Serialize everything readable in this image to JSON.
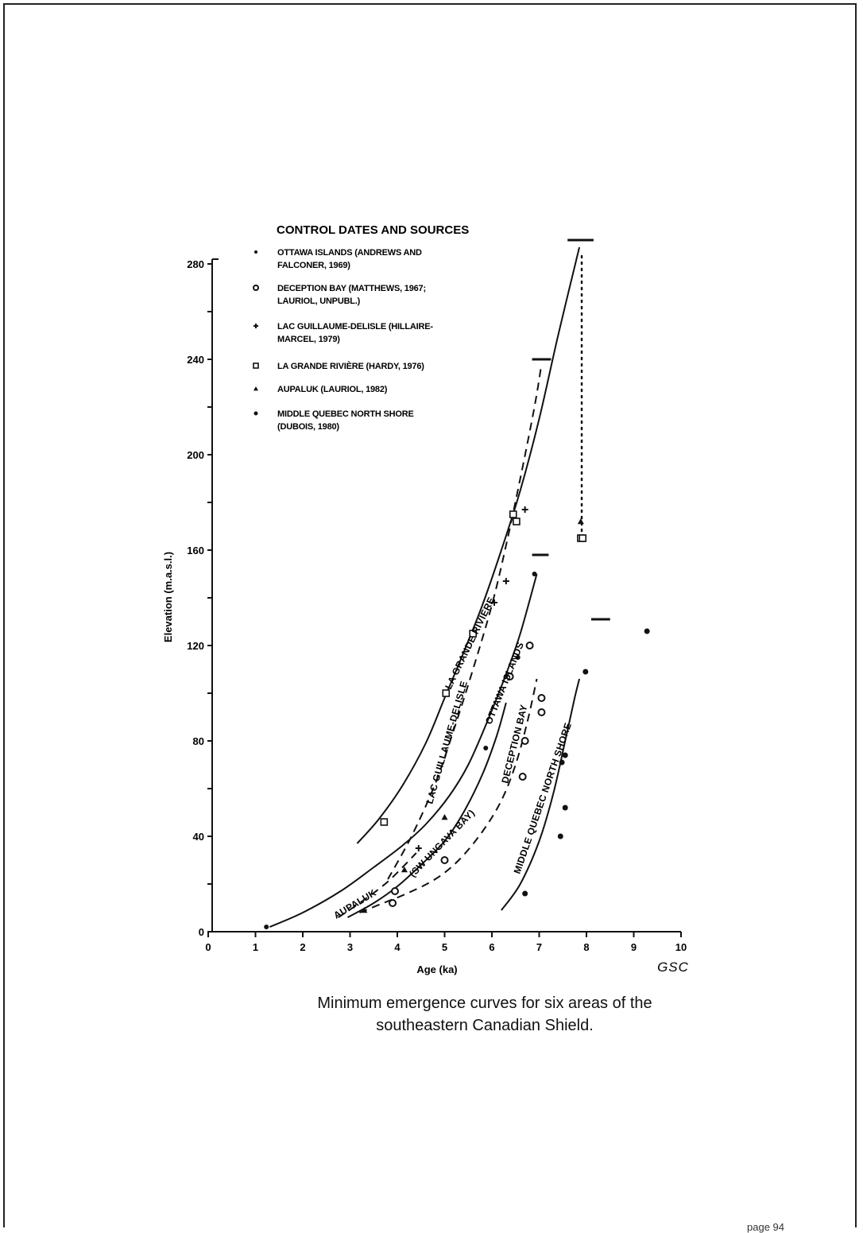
{
  "legend": {
    "title": "CONTROL DATES AND SOURCES",
    "entries": [
      {
        "marker": "dot",
        "line1": "OTTAWA ISLANDS (ANDREWS AND",
        "line2": "FALCONER, 1969)"
      },
      {
        "marker": "dot-large",
        "line1": "DECEPTION BAY (MATTHEWS, 1967;",
        "line2": "LAURIOL, UNPUBL.)"
      },
      {
        "marker": "cross",
        "line1": "LAC GUILLAUME-DELISLE (HILLAIRE-",
        "line2": "MARCEL, 1979)"
      },
      {
        "marker": "square",
        "line1": "LA GRANDE RIVIÈRE (HARDY, 1976)",
        "line2": ""
      },
      {
        "marker": "triangle",
        "line1": "AUPALUK (LAURIOL, 1982)",
        "line2": ""
      },
      {
        "marker": "diamond",
        "line1": "MIDDLE QUEBEC NORTH SHORE",
        "line2": "(DUBOIS, 1980)"
      }
    ]
  },
  "axes": {
    "y_title": "Elevation (m.a.s.l.)",
    "x_title": "Age (ka)",
    "x_ticks": [
      "0",
      "1",
      "2",
      "3",
      "4",
      "5",
      "6",
      "7",
      "8",
      "9",
      "10"
    ],
    "y_ticks": [
      "0",
      "40",
      "80",
      "120",
      "160",
      "200",
      "240",
      "280"
    ]
  },
  "source_mark": "GSC",
  "caption": {
    "line1": "Minimum emergence curves for six areas of the",
    "line2": "southeastern Canadian Shield."
  },
  "page_number": "page 94",
  "chart_data": {
    "type": "line",
    "title": "",
    "xlabel": "Age (ka)",
    "ylabel": "Elevation (m.a.s.l.)",
    "xlim": [
      0,
      10
    ],
    "ylim": [
      0,
      280
    ],
    "x_ticks": [
      0,
      1,
      2,
      3,
      4,
      5,
      6,
      7,
      8,
      9,
      10
    ],
    "y_ticks": [
      0,
      40,
      80,
      120,
      160,
      200,
      240,
      280
    ],
    "series": [
      {
        "name": "LA GRANDE RIVIÈRE",
        "style": "solid",
        "x": [
          3.15,
          3.6,
          4.1,
          4.6,
          5.0,
          5.4,
          5.8,
          6.2,
          6.6,
          7.0,
          7.4,
          7.85
        ],
        "y": [
          37,
          47,
          61,
          79,
          98,
          117,
          137,
          160,
          185,
          215,
          250,
          287
        ]
      },
      {
        "name": "LAC GUILLAUME-DELISLE",
        "style": "dashed",
        "x": [
          3.8,
          4.3,
          4.8,
          5.2,
          5.6,
          6.0,
          6.3,
          6.6,
          6.9,
          7.05
        ],
        "y": [
          22,
          40,
          62,
          85,
          110,
          137,
          162,
          190,
          220,
          238
        ]
      },
      {
        "name": "OTTAWA ISLANDS",
        "style": "solid",
        "x": [
          1.3,
          2.0,
          2.8,
          3.5,
          4.1,
          4.6,
          5.1,
          5.5,
          5.9,
          6.3,
          6.6,
          6.95
        ],
        "y": [
          2,
          8,
          17,
          27,
          36,
          45,
          57,
          70,
          88,
          108,
          125,
          150
        ]
      },
      {
        "name": "AUPALUK (SW UNGAVA BAY)",
        "style": "solid",
        "x": [
          2.95,
          3.5,
          4.0,
          4.5,
          5.0,
          5.4,
          5.8,
          6.1,
          6.3
        ],
        "y": [
          6,
          12,
          19,
          28,
          38,
          50,
          66,
          82,
          96
        ]
      },
      {
        "name": "DECEPTION BAY",
        "style": "dashed",
        "x": [
          3.2,
          3.7,
          4.2,
          4.8,
          5.3,
          5.8,
          6.2,
          6.5,
          6.75,
          6.95
        ],
        "y": [
          8,
          12,
          16,
          22,
          30,
          42,
          55,
          70,
          88,
          106
        ]
      },
      {
        "name": "MIDDLE QUEBEC NORTH SHORE",
        "style": "solid",
        "x": [
          6.2,
          6.6,
          7.0,
          7.3,
          7.55,
          7.75,
          7.85
        ],
        "y": [
          9,
          20,
          38,
          58,
          80,
          98,
          106
        ]
      },
      {
        "name": "",
        "style": "dashed",
        "x": [
          2.75,
          3.2,
          3.8,
          4.4
        ],
        "y": [
          6,
          12,
          21,
          33
        ]
      }
    ],
    "range_bars": [
      {
        "x": [
          7.6,
          8.15
        ],
        "y": 290
      },
      {
        "x": [
          6.85,
          7.25
        ],
        "y": 240
      },
      {
        "x": [
          6.85,
          7.2
        ],
        "y": 158
      },
      {
        "x": [
          8.1,
          8.5
        ],
        "y": 131
      }
    ],
    "dotted_connector": {
      "x": 7.9,
      "y": [
        168,
        285
      ]
    },
    "points": [
      {
        "x": 3.72,
        "y": 46,
        "marker": "square"
      },
      {
        "x": 5.03,
        "y": 100,
        "marker": "square"
      },
      {
        "x": 5.6,
        "y": 125,
        "marker": "square"
      },
      {
        "x": 6.45,
        "y": 175,
        "marker": "square"
      },
      {
        "x": 6.52,
        "y": 172,
        "marker": "square"
      },
      {
        "x": 7.88,
        "y": 165,
        "marker": "square"
      },
      {
        "x": 7.92,
        "y": 165,
        "marker": "square"
      },
      {
        "x": 6.7,
        "y": 177,
        "marker": "cross"
      },
      {
        "x": 6.3,
        "y": 147,
        "marker": "cross"
      },
      {
        "x": 6.05,
        "y": 138,
        "marker": "cross"
      },
      {
        "x": 4.45,
        "y": 35,
        "marker": "cross"
      },
      {
        "x": 7.88,
        "y": 172,
        "marker": "triangle"
      },
      {
        "x": 5.0,
        "y": 48,
        "marker": "triangle"
      },
      {
        "x": 4.15,
        "y": 26,
        "marker": "triangle"
      },
      {
        "x": 3.3,
        "y": 9,
        "marker": "triangle"
      },
      {
        "x": 1.23,
        "y": 2,
        "marker": "dot"
      },
      {
        "x": 5.87,
        "y": 77,
        "marker": "dot"
      },
      {
        "x": 6.55,
        "y": 115,
        "marker": "dot"
      },
      {
        "x": 6.9,
        "y": 150,
        "marker": "dot"
      },
      {
        "x": 3.9,
        "y": 12,
        "marker": "dot-large"
      },
      {
        "x": 3.95,
        "y": 17,
        "marker": "dot-large"
      },
      {
        "x": 5.0,
        "y": 30,
        "marker": "dot-large"
      },
      {
        "x": 6.65,
        "y": 65,
        "marker": "dot-large"
      },
      {
        "x": 6.7,
        "y": 80,
        "marker": "dot-large"
      },
      {
        "x": 6.38,
        "y": 107,
        "marker": "dot-large"
      },
      {
        "x": 7.05,
        "y": 92,
        "marker": "dot-large"
      },
      {
        "x": 7.05,
        "y": 98,
        "marker": "dot-large"
      },
      {
        "x": 6.8,
        "y": 120,
        "marker": "dot-large"
      },
      {
        "x": 6.7,
        "y": 16,
        "marker": "diamond"
      },
      {
        "x": 7.45,
        "y": 40,
        "marker": "diamond"
      },
      {
        "x": 7.55,
        "y": 52,
        "marker": "diamond"
      },
      {
        "x": 7.55,
        "y": 74,
        "marker": "diamond"
      },
      {
        "x": 7.48,
        "y": 71,
        "marker": "diamond"
      },
      {
        "x": 7.98,
        "y": 109,
        "marker": "diamond"
      },
      {
        "x": 9.28,
        "y": 126,
        "marker": "diamond"
      }
    ],
    "curve_labels": [
      "LA GRANDE RIVIÈRE",
      "LAC GUILLAUME-DELISLE",
      "OTTAWA ISLANDS",
      "DECEPTION BAY",
      "MIDDLE QUEBEC NORTH SHORE",
      "AUPALUK",
      "(SW UNGAVA BAY)"
    ],
    "grid": false,
    "legend_position": "top-left"
  }
}
